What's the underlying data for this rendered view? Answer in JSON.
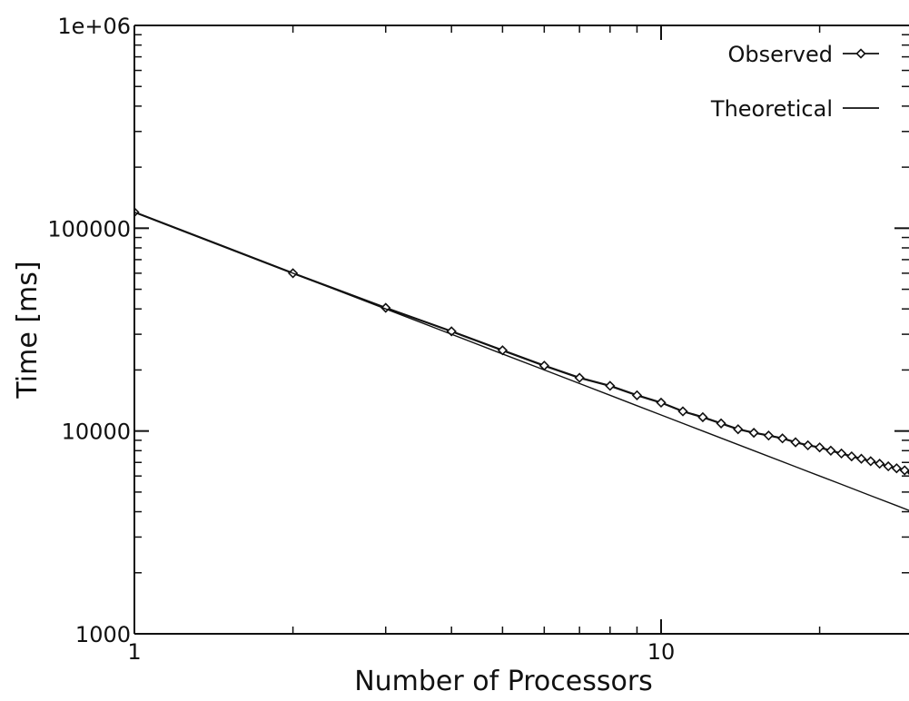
{
  "chart_data": {
    "type": "line",
    "title": "",
    "xlabel": "Number of Processors",
    "ylabel": "Time [ms]",
    "x_scale": "log",
    "y_scale": "log",
    "xlim": [
      1,
      30
    ],
    "ylim": [
      1000,
      1000000
    ],
    "x_ticks": [
      {
        "value": 1,
        "label": "1"
      },
      {
        "value": 10,
        "label": "10"
      }
    ],
    "y_ticks": [
      {
        "value": 1000,
        "label": "1000"
      },
      {
        "value": 10000,
        "label": "10000"
      },
      {
        "value": 100000,
        "label": "100000"
      },
      {
        "value": 1000000,
        "label": "1e+06"
      }
    ],
    "grid": false,
    "legend_position": "top-right",
    "series": [
      {
        "name": "Observed",
        "marker": "diamond",
        "color": "#111111",
        "points": [
          [
            1,
            120000
          ],
          [
            2,
            60000
          ],
          [
            3,
            40500
          ],
          [
            4,
            31000
          ],
          [
            5,
            25000
          ],
          [
            6,
            21000
          ],
          [
            7,
            18300
          ],
          [
            8,
            16700
          ],
          [
            9,
            15000
          ],
          [
            10,
            13800
          ],
          [
            11,
            12500
          ],
          [
            12,
            11700
          ],
          [
            13,
            10900
          ],
          [
            14,
            10200
          ],
          [
            15,
            9800
          ],
          [
            16,
            9500
          ],
          [
            17,
            9200
          ],
          [
            18,
            8800
          ],
          [
            19,
            8500
          ],
          [
            20,
            8300
          ],
          [
            21,
            8000
          ],
          [
            22,
            7750
          ],
          [
            23,
            7500
          ],
          [
            24,
            7300
          ],
          [
            25,
            7100
          ],
          [
            26,
            6900
          ],
          [
            27,
            6700
          ],
          [
            28,
            6550
          ],
          [
            29,
            6400
          ],
          [
            30,
            6200
          ]
        ]
      },
      {
        "name": "Theoretical",
        "marker": "none",
        "color": "#111111",
        "points": [
          [
            1,
            120000
          ],
          [
            2,
            60000
          ],
          [
            3,
            40000
          ],
          [
            4,
            30000
          ],
          [
            5,
            24000
          ],
          [
            6,
            20000
          ],
          [
            7,
            17143
          ],
          [
            8,
            15000
          ],
          [
            9,
            13333
          ],
          [
            10,
            12000
          ],
          [
            12,
            10000
          ],
          [
            15,
            8000
          ],
          [
            18,
            6667
          ],
          [
            20,
            6000
          ],
          [
            22,
            5455
          ],
          [
            25,
            4800
          ],
          [
            28,
            4286
          ],
          [
            30,
            4000
          ]
        ]
      }
    ]
  }
}
